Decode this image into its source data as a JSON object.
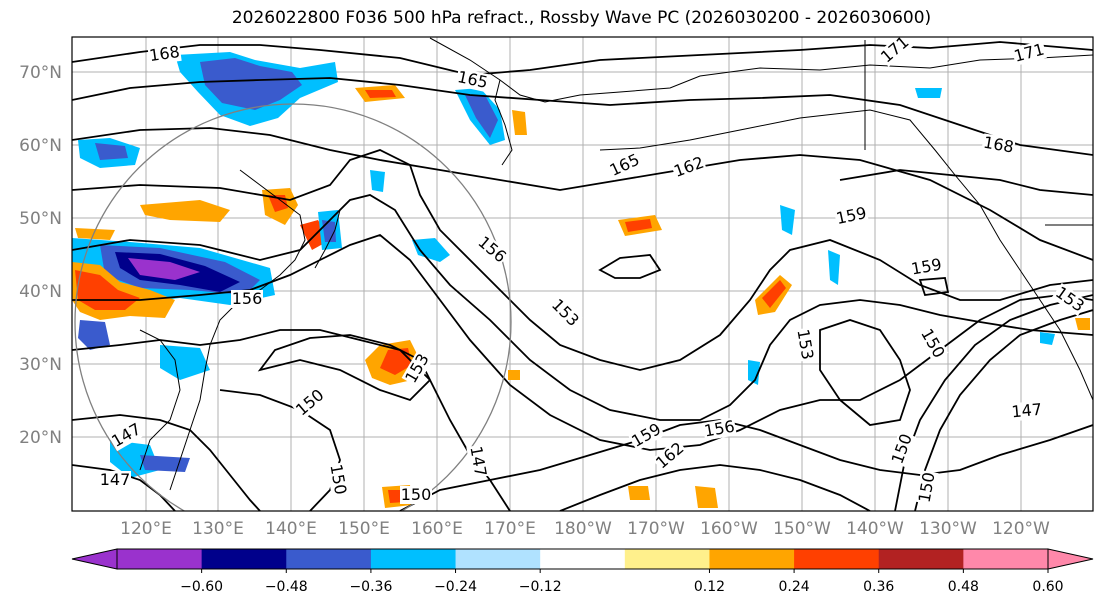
{
  "title": "2026022800 F036 500 hPa refract., Rossby Wave PC (2026030200 - 2026030600)",
  "lat_labels": [
    "70°N",
    "60°N",
    "50°N",
    "40°N",
    "30°N",
    "20°N"
  ],
  "lon_labels": [
    "120°E",
    "130°E",
    "140°E",
    "150°E",
    "160°E",
    "170°E",
    "180°W",
    "170°W",
    "160°W",
    "150°W",
    "140°W",
    "130°W",
    "120°W"
  ],
  "colorbar": {
    "colors": [
      "#9a32cd",
      "#00008b",
      "#3a5bcd",
      "#00bfff",
      "#b0e2ff",
      "#ffffff",
      "#fff08c",
      "#ffa500",
      "#ff4000",
      "#b22222",
      "#ff88aa"
    ],
    "tick_labels": [
      "−0.60",
      "−0.48",
      "−0.36",
      "−0.24",
      "−0.12",
      "0.12",
      "0.24",
      "0.36",
      "0.48",
      "0.60"
    ],
    "ticks": [
      -0.6,
      -0.48,
      -0.36,
      -0.24,
      -0.12,
      0.12,
      0.24,
      0.36,
      0.48,
      0.6
    ]
  },
  "contour_labels": [
    "168",
    "165",
    "171",
    "171",
    "168",
    "165",
    "162",
    "159",
    "159",
    "156",
    "156",
    "153",
    "153",
    "153",
    "150",
    "150",
    "150",
    "150",
    "150",
    "147",
    "147",
    "147",
    "147",
    "159",
    "162",
    "156",
    "153",
    "150"
  ]
}
